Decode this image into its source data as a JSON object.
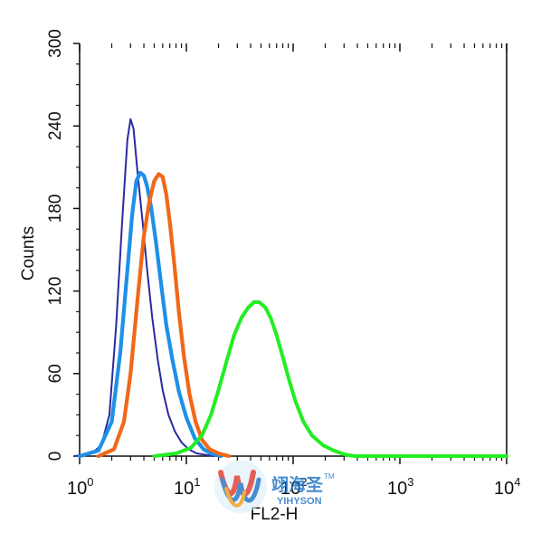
{
  "chart_data": {
    "type": "line",
    "title": "",
    "xlabel": "FL2-H",
    "ylabel": "Counts",
    "x_scale": "log",
    "xlim": [
      1,
      10000
    ],
    "ylim": [
      0,
      300
    ],
    "x_ticks": [
      {
        "base": "10",
        "exp": "0",
        "value": 1
      },
      {
        "base": "10",
        "exp": "1",
        "value": 10
      },
      {
        "base": "10",
        "exp": "2",
        "value": 100
      },
      {
        "base": "10",
        "exp": "3",
        "value": 1000
      },
      {
        "base": "10",
        "exp": "4",
        "value": 10000
      }
    ],
    "y_ticks": [
      "0",
      "60",
      "120",
      "180",
      "240",
      "300"
    ],
    "grid": false,
    "series": [
      {
        "color": "#2a2aa0",
        "x": [
          0.9,
          1.3,
          1.6,
          1.9,
          2.2,
          2.5,
          2.8,
          3.0,
          3.2,
          3.5,
          3.9,
          4.3,
          4.8,
          5.4,
          6.0,
          6.8,
          7.8,
          9.0,
          10.5,
          12.5,
          15,
          18
        ],
        "y": [
          0,
          2,
          8,
          30,
          95,
          170,
          230,
          245,
          238,
          205,
          170,
          135,
          100,
          70,
          48,
          30,
          18,
          10,
          5,
          2,
          1,
          0
        ]
      },
      {
        "color": "#1e90e8",
        "x": [
          1.0,
          1.5,
          2.0,
          2.4,
          2.8,
          3.1,
          3.4,
          3.7,
          4.0,
          4.3,
          4.7,
          5.2,
          5.8,
          6.5,
          7.4,
          8.5,
          10.0,
          12.0,
          14.5,
          17,
          21
        ],
        "y": [
          0,
          4,
          25,
          75,
          135,
          175,
          200,
          206,
          204,
          196,
          180,
          155,
          125,
          95,
          70,
          47,
          28,
          13,
          5,
          2,
          0
        ]
      },
      {
        "color": "#f06818",
        "x": [
          1.5,
          2.1,
          2.6,
          3.0,
          3.5,
          4.0,
          4.5,
          5.0,
          5.5,
          6.0,
          6.5,
          7.0,
          7.7,
          8.5,
          9.5,
          10.7,
          12.2,
          14.0,
          16.5,
          20,
          25
        ],
        "y": [
          0,
          5,
          25,
          60,
          115,
          160,
          185,
          200,
          205,
          203,
          190,
          170,
          140,
          105,
          72,
          45,
          25,
          12,
          5,
          2,
          0
        ]
      },
      {
        "color": "#22ee22",
        "x": [
          5,
          8,
          11,
          14,
          17,
          20,
          24,
          28,
          33,
          38,
          43,
          48,
          55,
          62,
          70,
          80,
          92,
          105,
          125,
          150,
          190,
          240,
          310,
          380,
          3000,
          10000
        ],
        "y": [
          0,
          2,
          6,
          15,
          30,
          48,
          70,
          88,
          101,
          108,
          112,
          112,
          108,
          100,
          88,
          72,
          55,
          40,
          25,
          15,
          8,
          4,
          1,
          0,
          0,
          0
        ]
      }
    ]
  },
  "watermark": {
    "cn": "翊海圣",
    "tm": "TM",
    "en": "YIHYSON"
  }
}
